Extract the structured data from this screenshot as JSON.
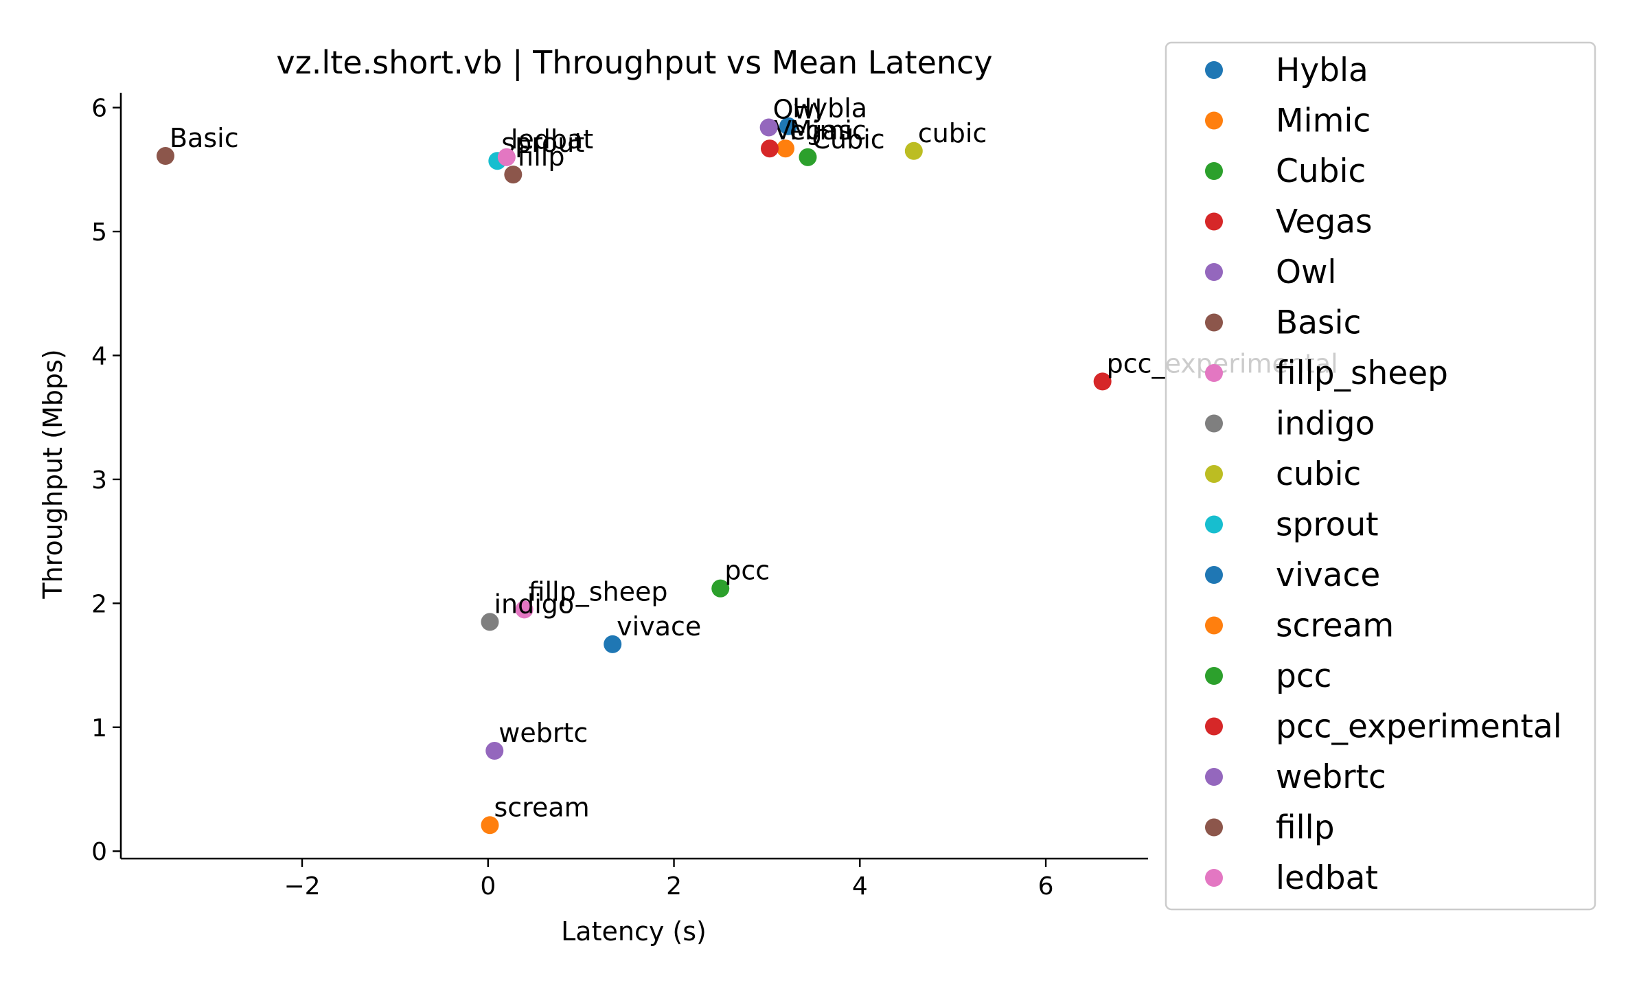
{
  "chart_data": {
    "type": "scatter",
    "title": "vz.lte.short.vb | Throughput vs Mean Latency",
    "xlabel": "Latency (s)",
    "ylabel": "Throughput (Mbps)",
    "xlim": [
      -3.95,
      7.1
    ],
    "ylim": [
      -0.06,
      6.12
    ],
    "xticks": [
      -2,
      0,
      2,
      4,
      6
    ],
    "yticks": [
      0,
      1,
      2,
      3,
      4,
      5,
      6
    ],
    "xtick_labels": [
      "−2",
      "0",
      "2",
      "4",
      "6"
    ],
    "ytick_labels": [
      "0",
      "1",
      "2",
      "3",
      "4",
      "5",
      "6"
    ],
    "grid": false,
    "legend_position": "outside-right",
    "series": [
      {
        "name": "Hybla",
        "color": "#1f77b4",
        "x": 3.23,
        "y": 5.85
      },
      {
        "name": "Mimic",
        "color": "#ff7f0e",
        "x": 3.2,
        "y": 5.67
      },
      {
        "name": "Cubic",
        "color": "#2ca02c",
        "x": 3.44,
        "y": 5.6
      },
      {
        "name": "Vegas",
        "color": "#d62728",
        "x": 3.03,
        "y": 5.67
      },
      {
        "name": "Owl",
        "color": "#9467bd",
        "x": 3.02,
        "y": 5.84
      },
      {
        "name": "Basic",
        "color": "#8c564b",
        "x": -3.47,
        "y": 5.61
      },
      {
        "name": "fillp_sheep",
        "color": "#e377c2",
        "x": 0.39,
        "y": 1.95
      },
      {
        "name": "indigo",
        "color": "#7f7f7f",
        "x": 0.02,
        "y": 1.85
      },
      {
        "name": "cubic",
        "color": "#bcbd22",
        "x": 4.58,
        "y": 5.65
      },
      {
        "name": "sprout",
        "color": "#17becf",
        "x": 0.1,
        "y": 5.57
      },
      {
        "name": "vivace",
        "color": "#1f77b4",
        "x": 1.34,
        "y": 1.67
      },
      {
        "name": "scream",
        "color": "#ff7f0e",
        "x": 0.02,
        "y": 0.21
      },
      {
        "name": "pcc",
        "color": "#2ca02c",
        "x": 2.5,
        "y": 2.12
      },
      {
        "name": "pcc_experimental",
        "color": "#d62728",
        "x": 6.61,
        "y": 3.79
      },
      {
        "name": "webrtc",
        "color": "#9467bd",
        "x": 0.07,
        "y": 0.81
      },
      {
        "name": "fillp",
        "color": "#8c564b",
        "x": 0.27,
        "y": 5.46
      },
      {
        "name": "ledbat",
        "color": "#e377c2",
        "x": 0.2,
        "y": 5.6
      }
    ]
  }
}
